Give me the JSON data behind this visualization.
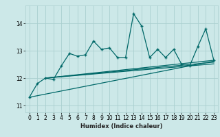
{
  "title": "",
  "xlabel": "Humidex (Indice chaleur)",
  "ylabel": "",
  "bg_color": "#cce8e8",
  "grid_color": "#aacfcf",
  "line_color": "#006868",
  "xlim": [
    -0.5,
    23.5
  ],
  "ylim": [
    10.75,
    14.65
  ],
  "yticks": [
    11,
    12,
    13,
    14
  ],
  "xticks": [
    0,
    1,
    2,
    3,
    4,
    5,
    6,
    7,
    8,
    9,
    10,
    11,
    12,
    13,
    14,
    15,
    16,
    17,
    18,
    19,
    20,
    21,
    22,
    23
  ],
  "series_main": {
    "x": [
      0,
      1,
      2,
      3,
      4,
      5,
      6,
      7,
      8,
      9,
      10,
      11,
      12,
      13,
      14,
      15,
      16,
      17,
      18,
      19,
      20,
      21,
      22,
      23
    ],
    "y": [
      11.3,
      11.8,
      12.0,
      11.95,
      12.45,
      12.9,
      12.8,
      12.85,
      13.35,
      13.05,
      13.1,
      12.75,
      12.75,
      14.35,
      13.9,
      12.75,
      13.05,
      12.75,
      13.05,
      12.5,
      12.45,
      13.15,
      13.8,
      12.65
    ]
  },
  "series_smooth1": {
    "x": [
      0,
      23
    ],
    "y": [
      11.3,
      12.62
    ]
  },
  "series_smooth2": {
    "x": [
      2,
      23
    ],
    "y": [
      12.0,
      12.65
    ]
  },
  "series_smooth3": {
    "x": [
      2,
      23
    ],
    "y": [
      12.0,
      12.58
    ]
  },
  "series_smooth4": {
    "x": [
      2,
      23
    ],
    "y": [
      12.0,
      12.52
    ]
  }
}
